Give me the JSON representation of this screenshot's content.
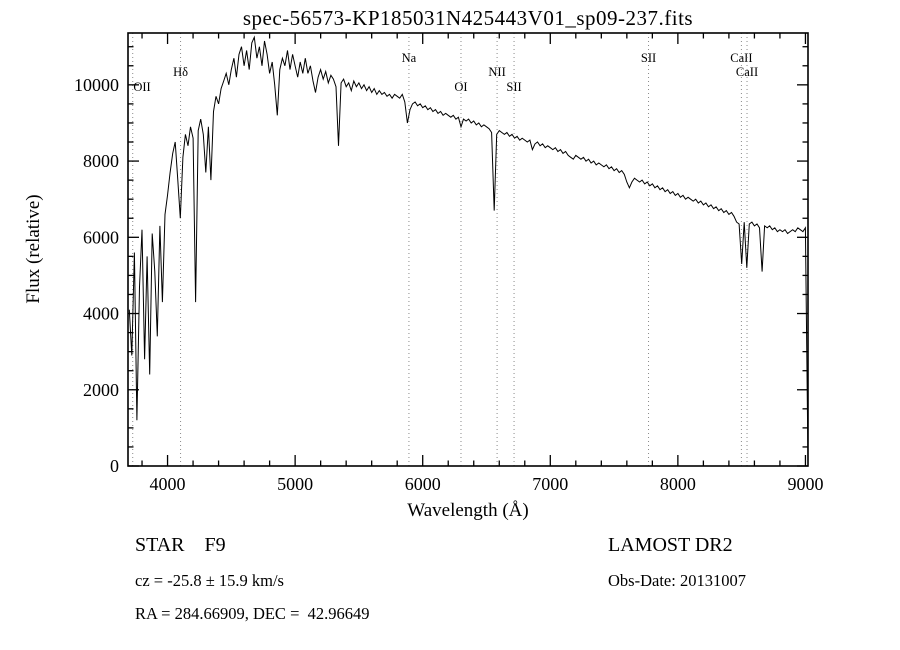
{
  "title": "spec-56573-KP185031N425443V01_sp09-237.fits",
  "chart_data": {
    "type": "line",
    "title": "spec-56573-KP185031N425443V01_sp09-237.fits",
    "xlabel": "Wavelength (Å)",
    "ylabel": "Flux (relative)",
    "xlim": [
      3690,
      9020
    ],
    "ylim": [
      0,
      11360
    ],
    "x_ticks": [
      4000,
      5000,
      6000,
      7000,
      8000,
      9000
    ],
    "y_ticks": [
      0,
      2000,
      4000,
      6000,
      8000,
      10000
    ],
    "x_minor_step": 200,
    "y_minor_step": 500,
    "grid": false,
    "legend": "none",
    "line_color": "#000000",
    "marker_line_color": "#8a8a8a",
    "line_markers": [
      {
        "label": "OII",
        "wavelength": 3727,
        "row": 2
      },
      {
        "label": "Hδ",
        "wavelength": 4102,
        "row": 1
      },
      {
        "label": "Na",
        "wavelength": 5892,
        "row": 0
      },
      {
        "label": "OI",
        "wavelength": 6300,
        "row": 2
      },
      {
        "label": "NII",
        "wavelength": 6583,
        "row": 1
      },
      {
        "label": "SII",
        "wavelength": 6716,
        "row": 2
      },
      {
        "label": "SII",
        "wavelength": 7770,
        "row": 0
      },
      {
        "label": "CaII",
        "wavelength": 8498,
        "row": 0
      },
      {
        "label": "CaII",
        "wavelength": 8542,
        "row": 1
      }
    ],
    "series": [
      {
        "name": "spectrum",
        "x_start": 3700,
        "x_step": 20,
        "flux": [
          4100,
          2900,
          5600,
          1200,
          4700,
          6200,
          2800,
          5500,
          2400,
          6100,
          5100,
          3400,
          6300,
          4300,
          6600,
          7100,
          7700,
          8200,
          8500,
          7500,
          6500,
          8100,
          8700,
          8400,
          8900,
          8600,
          4300,
          8800,
          9100,
          8700,
          7700,
          8900,
          7500,
          9300,
          9700,
          9500,
          9900,
          10100,
          10300,
          10000,
          10400,
          10700,
          10200,
          10800,
          11000,
          10500,
          10900,
          10400,
          11100,
          11250,
          10700,
          11000,
          10500,
          11150,
          10800,
          10300,
          10600,
          10000,
          9200,
          10400,
          10700,
          10500,
          10900,
          10400,
          10800,
          10500,
          10200,
          10600,
          10300,
          10700,
          10300,
          10500,
          10100,
          9800,
          10200,
          10400,
          10150,
          10350,
          10050,
          10250,
          10150,
          9950,
          8400,
          10050,
          10150,
          9950,
          10050,
          9850,
          10100,
          9950,
          10050,
          9900,
          10000,
          9850,
          9950,
          9800,
          9900,
          9750,
          9850,
          9750,
          9800,
          9700,
          9750,
          9650,
          9750,
          9700,
          9650,
          9750,
          9550,
          9000,
          9350,
          9500,
          9550,
          9450,
          9500,
          9400,
          9450,
          9350,
          9400,
          9300,
          9350,
          9250,
          9300,
          9200,
          9250,
          9200,
          9150,
          9200,
          9100,
          9150,
          8900,
          9100,
          9050,
          9100,
          9000,
          9050,
          8950,
          9000,
          8900,
          8950,
          8900,
          8850,
          8750,
          6700,
          8700,
          8800,
          8750,
          8700,
          8750,
          8650,
          8700,
          8600,
          8650,
          8550,
          8600,
          8550,
          8500,
          8550,
          8300,
          8450,
          8500,
          8400,
          8450,
          8350,
          8400,
          8350,
          8300,
          8350,
          8250,
          8300,
          8200,
          8250,
          8150,
          8100,
          8050,
          8150,
          8100,
          8050,
          8100,
          8000,
          8050,
          7950,
          8000,
          7900,
          7950,
          7900,
          7850,
          7900,
          7800,
          7850,
          7750,
          7800,
          7700,
          7750,
          7650,
          7450,
          7300,
          7450,
          7550,
          7500,
          7450,
          7500,
          7400,
          7450,
          7350,
          7400,
          7300,
          7350,
          7250,
          7300,
          7200,
          7250,
          7150,
          7200,
          7100,
          7150,
          7050,
          7100,
          7000,
          7050,
          7000,
          6950,
          7000,
          6900,
          6950,
          6850,
          6900,
          6800,
          6850,
          6750,
          6800,
          6700,
          6750,
          6650,
          6700,
          6600,
          6650,
          6550,
          6400,
          6350,
          5300,
          6400,
          5200,
          6350,
          6400,
          6300,
          6350,
          6250,
          5100,
          6300,
          6250,
          6300,
          6200,
          6250,
          6150,
          6200,
          6150,
          6200,
          6100,
          6150,
          6200,
          6150,
          6250,
          6200,
          6150,
          6250,
          80
        ]
      }
    ]
  },
  "footer": {
    "star_class": "STAR    F9",
    "survey": "LAMOST DR2",
    "cz_line": "cz = -25.8 ± 15.9 km/s",
    "obs_date": "Obs-Date: 20131007",
    "radec_line": "RA = 284.66909, DEC =  42.96649"
  }
}
